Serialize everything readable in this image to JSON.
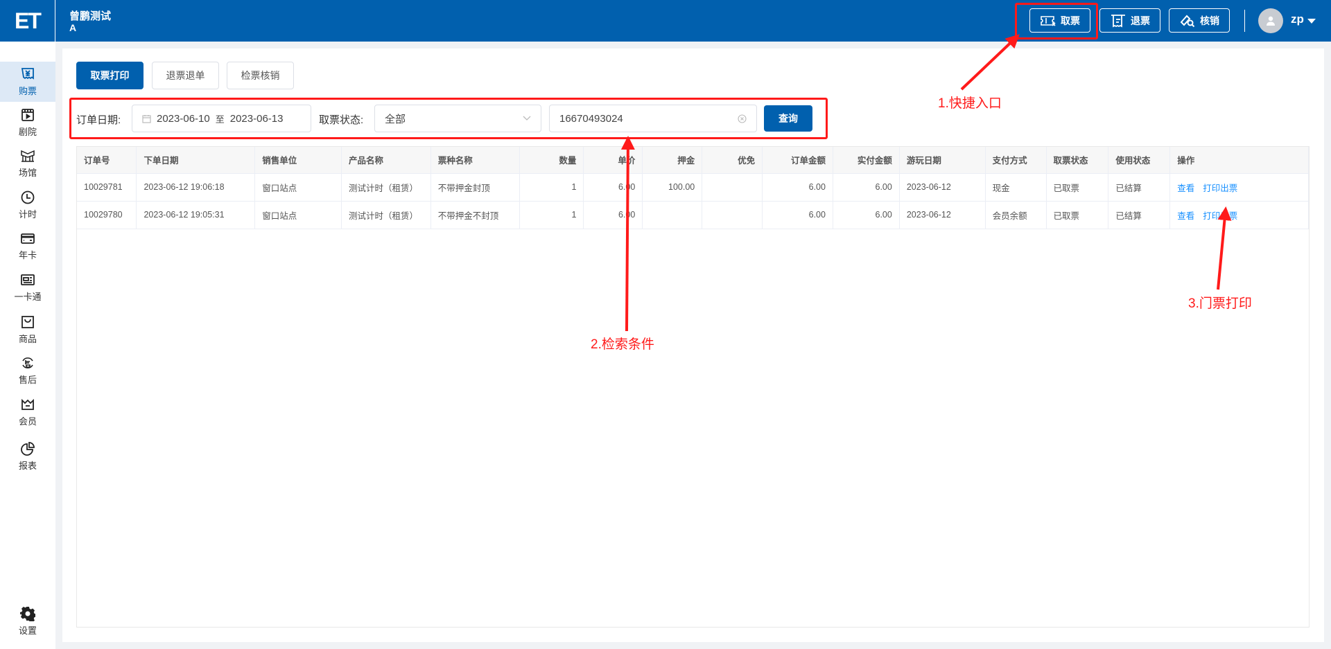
{
  "header": {
    "logo": "ET",
    "title": "曾鹏测试",
    "subtitle": "A",
    "buttons": [
      {
        "label": "取票",
        "icon": "ticket-icon"
      },
      {
        "label": "退票",
        "icon": "receipt-icon"
      },
      {
        "label": "核销",
        "icon": "verify-icon"
      }
    ],
    "username": "zp"
  },
  "sidebar": {
    "items": [
      {
        "label": "购票",
        "icon": "ticket-yen-icon",
        "active": true
      },
      {
        "label": "剧院",
        "icon": "film-icon"
      },
      {
        "label": "场馆",
        "icon": "venue-icon"
      },
      {
        "label": "计时",
        "icon": "clock-icon"
      },
      {
        "label": "年卡",
        "icon": "card-icon"
      },
      {
        "label": "一卡通",
        "icon": "id-card-icon"
      },
      {
        "label": "商品",
        "icon": "bag-icon"
      },
      {
        "label": "售后",
        "icon": "after-sale-icon"
      },
      {
        "label": "会员",
        "icon": "crown-icon"
      },
      {
        "label": "报表",
        "icon": "pie-chart-icon"
      }
    ],
    "settings": "设置"
  },
  "tabs": [
    "取票打印",
    "退票退单",
    "检票核销"
  ],
  "filters": {
    "date_label": "订单日期:",
    "date_start": "2023-06-10",
    "date_sep": "至",
    "date_end": "2023-06-13",
    "status_label": "取票状态:",
    "status_value": "全部",
    "search_value": "16670493024",
    "query": "查询"
  },
  "table": {
    "columns": [
      "订单号",
      "下单日期",
      "销售单位",
      "产品名称",
      "票种名称",
      "数量",
      "单价",
      "押金",
      "优免",
      "订单金额",
      "实付金额",
      "游玩日期",
      "支付方式",
      "取票状态",
      "使用状态",
      "操作"
    ],
    "rows": [
      [
        "10029781",
        "2023-06-12 19:06:18",
        "窗口站点",
        "测试计时（租赁）",
        "不带押金封顶",
        "1",
        "6.00",
        "100.00",
        "",
        "6.00",
        "6.00",
        "2023-06-12",
        "现金",
        "已取票",
        "已结算"
      ],
      [
        "10029780",
        "2023-06-12 19:05:31",
        "窗口站点",
        "测试计时（租赁）",
        "不带押金不封顶",
        "1",
        "6.00",
        "",
        "",
        "6.00",
        "6.00",
        "2023-06-12",
        "会员余额",
        "已取票",
        "已结算"
      ]
    ],
    "actions": [
      "查看",
      "打印出票"
    ]
  },
  "annotations": [
    "1.快捷入口",
    "2.检索条件",
    "3.门票打印"
  ],
  "colors": {
    "primary": "#0160ae",
    "annotation": "#ff1a1a",
    "link": "#1890ff"
  }
}
